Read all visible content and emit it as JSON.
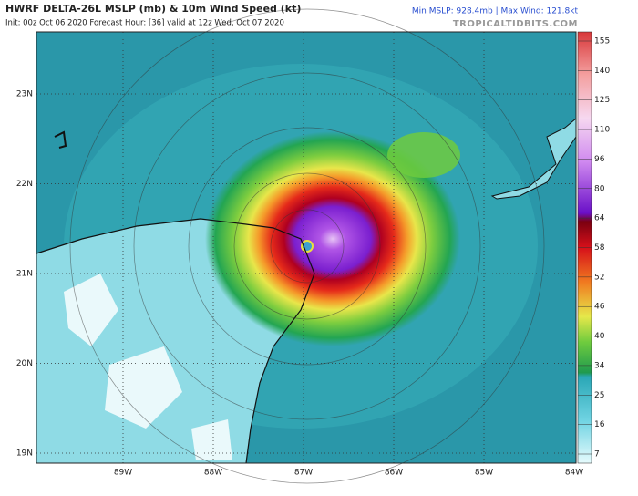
{
  "header": {
    "title": "HWRF DELTA-26L MSLP (mb) & 10m Wind Speed (kt)",
    "subtitle": "Init: 00z Oct 06 2020   Forecast Hour: [36]   valid at 12z Wed, Oct 07 2020",
    "stats": "Min MSLP: 928.4mb | Max Wind: 121.8kt",
    "source": "TROPICALTIDBITS.COM"
  },
  "map": {
    "lat_labels": [
      "23N",
      "22N",
      "21N",
      "20N",
      "19N"
    ],
    "lon_labels": [
      "89W",
      "88W",
      "87W",
      "86W",
      "85W",
      "84W"
    ]
  },
  "colorbar": {
    "labels": [
      "155",
      "140",
      "125",
      "110",
      "96",
      "80",
      "64",
      "58",
      "52",
      "46",
      "40",
      "34",
      "25",
      "16",
      "7"
    ]
  }
}
